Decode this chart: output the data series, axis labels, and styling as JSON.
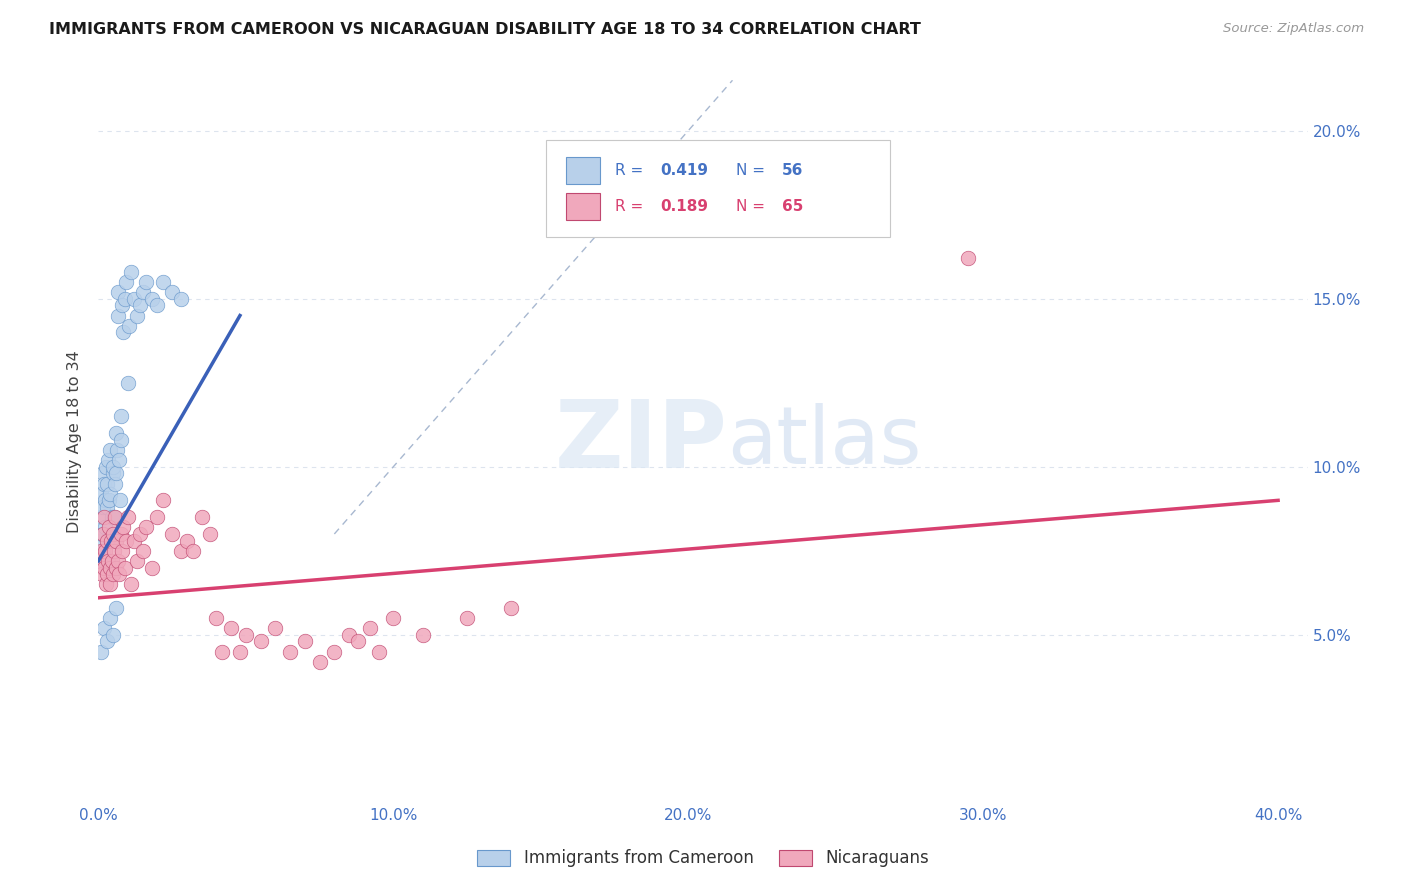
{
  "title": "IMMIGRANTS FROM CAMEROON VS NICARAGUAN DISABILITY AGE 18 TO 34 CORRELATION CHART",
  "source": "Source: ZipAtlas.com",
  "ylabel": "Disability Age 18 to 34",
  "x_tick_labels": [
    "0.0%",
    "10.0%",
    "20.0%",
    "30.0%",
    "40.0%"
  ],
  "x_tick_values": [
    0.0,
    10.0,
    20.0,
    30.0,
    40.0
  ],
  "y_tick_labels": [
    "5.0%",
    "10.0%",
    "15.0%",
    "20.0%"
  ],
  "y_tick_values": [
    5.0,
    10.0,
    15.0,
    20.0
  ],
  "xlim": [
    0.0,
    41.0
  ],
  "ylim": [
    0.0,
    21.5
  ],
  "color_cam_fill": "#b8d0ea",
  "color_cam_edge": "#6898cc",
  "color_nic_fill": "#f0a8bc",
  "color_nic_edge": "#c04870",
  "color_trend_cam": "#3a60b8",
  "color_trend_nic": "#d84070",
  "color_diag": "#a8b8d0",
  "color_grid": "#dde4ee",
  "legend_label_cameroon": "Immigrants from Cameroon",
  "legend_label_nicaragua": "Nicaraguans",
  "legend_r1": "0.419",
  "legend_n1": "56",
  "legend_r2": "0.189",
  "legend_n2": "65",
  "trend_cam_x0": 0.0,
  "trend_cam_y0": 7.2,
  "trend_cam_x1": 4.8,
  "trend_cam_y1": 14.5,
  "trend_nic_x0": 0.0,
  "trend_nic_y0": 6.1,
  "trend_nic_x1": 40.0,
  "trend_nic_y1": 9.0,
  "cam_x": [
    0.05,
    0.08,
    0.1,
    0.12,
    0.14,
    0.15,
    0.17,
    0.18,
    0.2,
    0.22,
    0.24,
    0.25,
    0.28,
    0.3,
    0.32,
    0.35,
    0.38,
    0.4,
    0.42,
    0.45,
    0.48,
    0.5,
    0.52,
    0.55,
    0.58,
    0.6,
    0.62,
    0.65,
    0.68,
    0.7,
    0.72,
    0.75,
    0.78,
    0.8,
    0.85,
    0.9,
    0.95,
    1.0,
    1.05,
    1.1,
    1.2,
    1.3,
    1.4,
    1.5,
    1.6,
    1.8,
    2.0,
    2.2,
    2.5,
    2.8,
    0.1,
    0.2,
    0.3,
    0.4,
    0.5,
    0.6
  ],
  "cam_y": [
    7.8,
    8.5,
    9.2,
    8.0,
    9.8,
    7.5,
    8.8,
    9.5,
    7.2,
    9.0,
    8.2,
    10.0,
    9.5,
    8.8,
    10.2,
    9.0,
    10.5,
    9.2,
    7.8,
    8.5,
    9.8,
    10.0,
    8.5,
    9.5,
    11.0,
    9.8,
    10.5,
    14.5,
    15.2,
    10.2,
    9.0,
    11.5,
    10.8,
    14.8,
    14.0,
    15.0,
    15.5,
    12.5,
    14.2,
    15.8,
    15.0,
    14.5,
    14.8,
    15.2,
    15.5,
    15.0,
    14.8,
    15.5,
    15.2,
    15.0,
    4.5,
    5.2,
    4.8,
    5.5,
    5.0,
    5.8
  ],
  "nic_x": [
    0.05,
    0.1,
    0.12,
    0.15,
    0.18,
    0.2,
    0.22,
    0.25,
    0.28,
    0.3,
    0.32,
    0.35,
    0.38,
    0.4,
    0.42,
    0.45,
    0.48,
    0.5,
    0.52,
    0.55,
    0.58,
    0.6,
    0.65,
    0.7,
    0.75,
    0.8,
    0.85,
    0.9,
    0.95,
    1.0,
    1.1,
    1.2,
    1.3,
    1.4,
    1.5,
    1.6,
    1.8,
    2.0,
    2.2,
    2.5,
    2.8,
    3.0,
    3.2,
    3.5,
    3.8,
    4.0,
    4.2,
    4.5,
    5.0,
    5.5,
    6.0,
    6.5,
    7.0,
    7.5,
    8.0,
    8.5,
    8.8,
    9.2,
    9.5,
    10.0,
    11.0,
    12.5,
    14.0,
    29.5,
    4.8
  ],
  "nic_y": [
    7.2,
    7.5,
    6.8,
    8.0,
    7.0,
    8.5,
    7.5,
    6.5,
    7.8,
    6.8,
    7.2,
    8.2,
    7.0,
    6.5,
    7.8,
    7.2,
    6.8,
    8.0,
    7.5,
    8.5,
    7.0,
    7.8,
    7.2,
    6.8,
    8.0,
    7.5,
    8.2,
    7.0,
    7.8,
    8.5,
    6.5,
    7.8,
    7.2,
    8.0,
    7.5,
    8.2,
    7.0,
    8.5,
    9.0,
    8.0,
    7.5,
    7.8,
    7.5,
    8.5,
    8.0,
    5.5,
    4.5,
    5.2,
    5.0,
    4.8,
    5.2,
    4.5,
    4.8,
    4.2,
    4.5,
    5.0,
    4.8,
    5.2,
    4.5,
    5.5,
    5.0,
    5.5,
    5.8,
    16.2,
    4.5
  ]
}
